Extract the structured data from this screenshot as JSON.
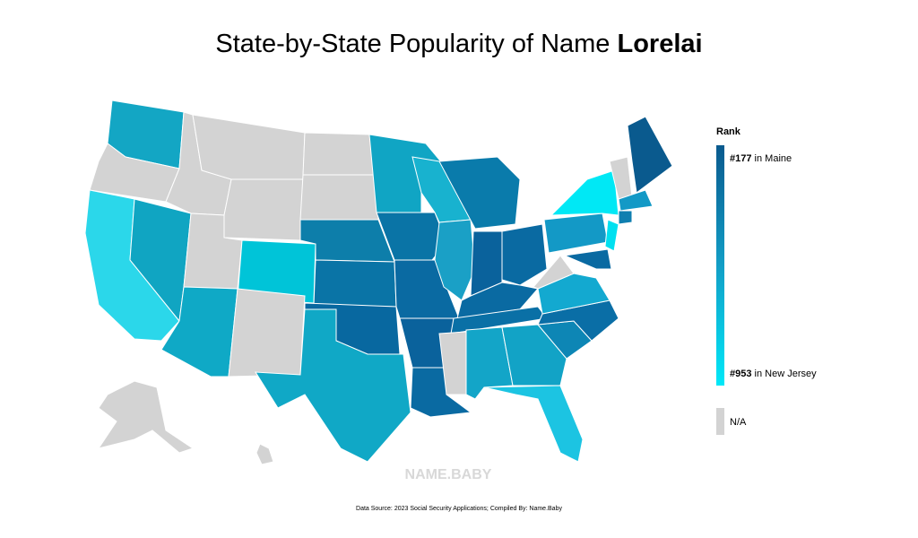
{
  "title": {
    "text": "State-by-State Popularity of Name",
    "name": "Lorelai"
  },
  "legend": {
    "heading": "Rank",
    "top": {
      "rank": "#177",
      "label": "in Maine"
    },
    "bottom": {
      "rank": "#953",
      "label": "in New Jersey"
    },
    "na": "N/A"
  },
  "watermark": "NAME.BABY",
  "footer": "Data Source: 2023 Social Security Applications; Compiled By: Name.Baby"
}
